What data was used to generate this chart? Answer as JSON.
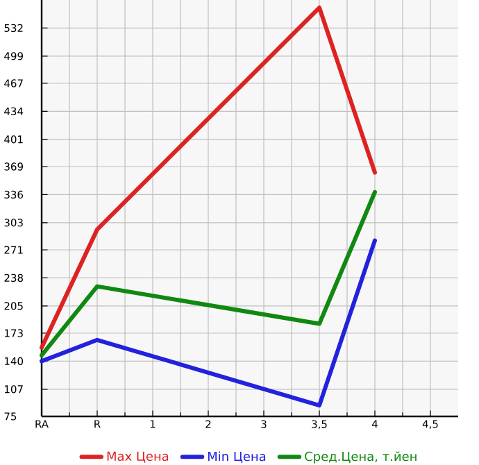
{
  "chart_data": {
    "type": "line",
    "categories": [
      "RA",
      "R",
      "1",
      "2",
      "3",
      "3,5",
      "4",
      "4,5"
    ],
    "series": [
      {
        "name": "Max Цена",
        "color": "#dd2222",
        "values": [
          156,
          295,
          null,
          null,
          null,
          556,
          362,
          null
        ]
      },
      {
        "name": "Min Цена",
        "color": "#2222dd",
        "values": [
          140,
          165,
          null,
          null,
          null,
          88,
          282,
          null
        ]
      },
      {
        "name": "Сред.Цена, т.йен",
        "color": "#118811",
        "values": [
          147,
          228,
          null,
          null,
          null,
          184,
          339,
          null
        ]
      }
    ],
    "ylim": [
      75,
      565
    ],
    "yticks": [
      75,
      107,
      140,
      173,
      205,
      238,
      271,
      303,
      336,
      369,
      401,
      434,
      467,
      499,
      532
    ],
    "grid": true,
    "legend": "bottom",
    "marker": "none",
    "line_style": "solid"
  }
}
